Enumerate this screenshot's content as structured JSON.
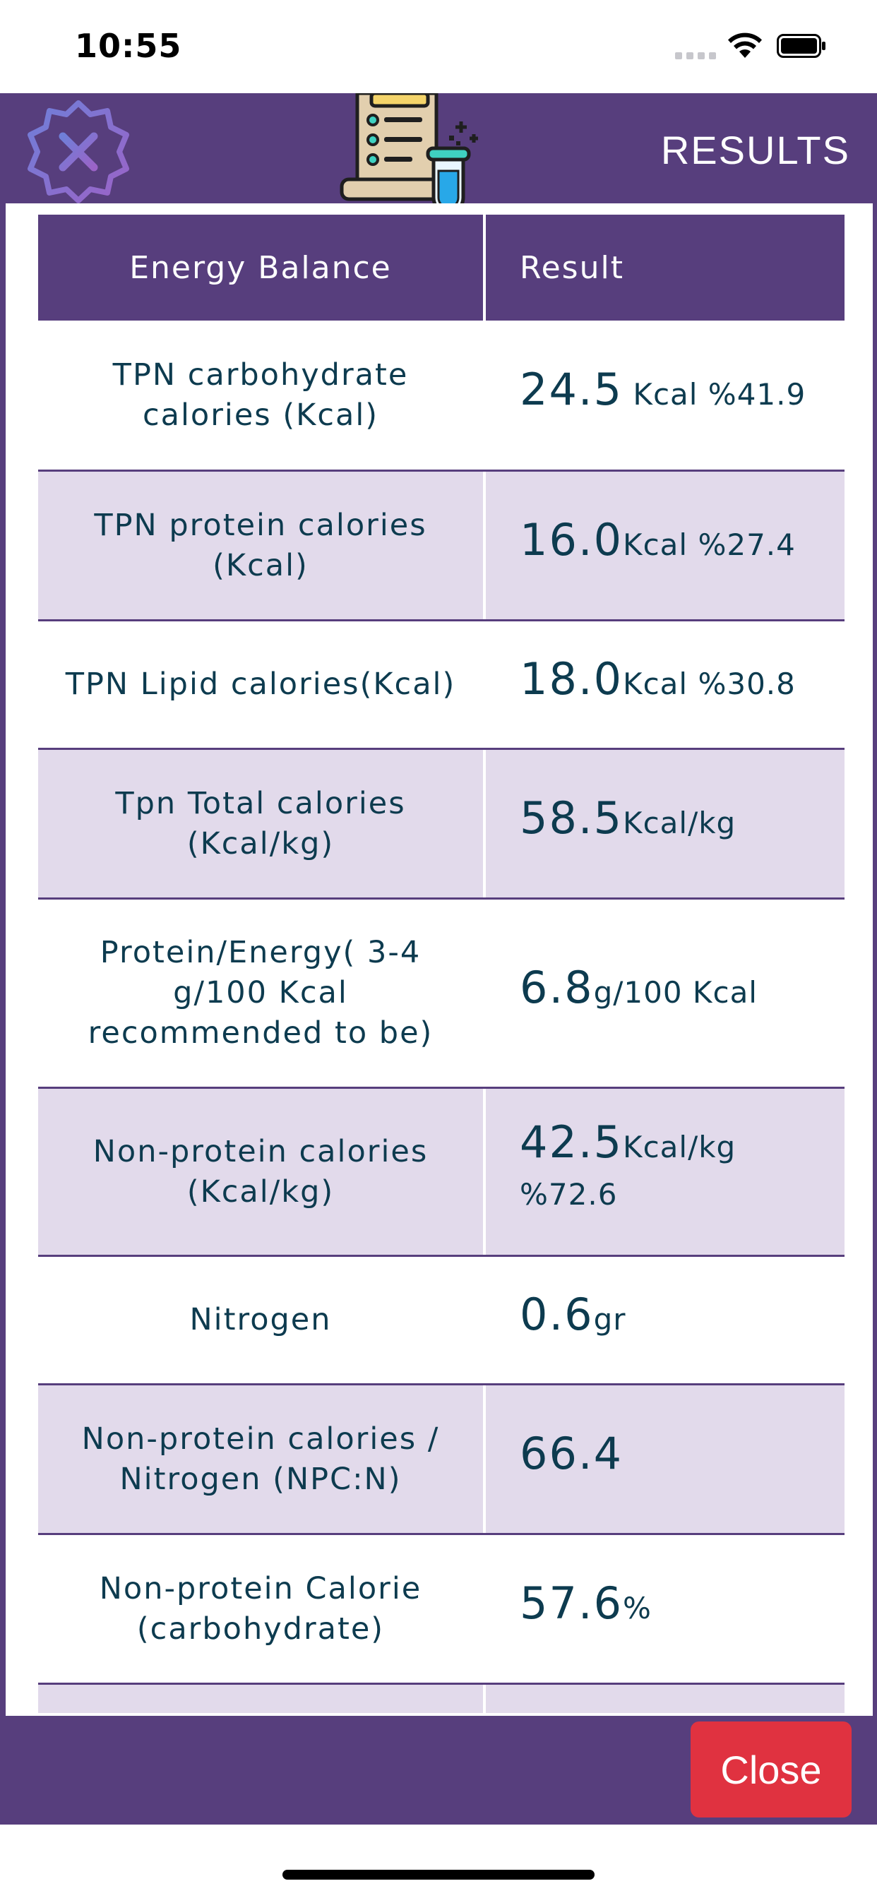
{
  "status_bar": {
    "time": "10:55"
  },
  "header": {
    "title": "RESULTS"
  },
  "table": {
    "headers": {
      "parameter": "Energy Balance",
      "result": "Result"
    },
    "rows": [
      {
        "label": "TPN carbohydrate calories (Kcal)",
        "value": "24.5",
        "unit": " Kcal %41.9"
      },
      {
        "label": "TPN protein calories (Kcal)",
        "value": "16.0",
        "unit": "Kcal %27.4"
      },
      {
        "label": "TPN Lipid calories(Kcal)",
        "value": "18.0",
        "unit": "Kcal %30.8"
      },
      {
        "label": "Tpn Total calories (Kcal/kg)",
        "value": "58.5",
        "unit": "Kcal/kg"
      },
      {
        "label": "Protein/Energy( 3-4 g/100 Kcal recommended to be)",
        "value": "6.8",
        "unit": "g/100 Kcal"
      },
      {
        "label": "Non-protein calories (Kcal/kg)",
        "value": "42.5",
        "unit": "Kcal/kg %72.6"
      },
      {
        "label": "Nitrogen",
        "value": "0.6",
        "unit": "gr"
      },
      {
        "label": "Non-protein calories / Nitrogen (NPC:N)",
        "value": "66.4",
        "unit": ""
      },
      {
        "label": "Non-protein Calorie (carbohydrate)",
        "value": "57.6",
        "unit": "%"
      }
    ]
  },
  "footer": {
    "close_label": "Close"
  },
  "colors": {
    "primary": "#573e7d",
    "row_shade": "#e2daeb",
    "text": "#0d3b4f",
    "close_button": "#e03240"
  }
}
